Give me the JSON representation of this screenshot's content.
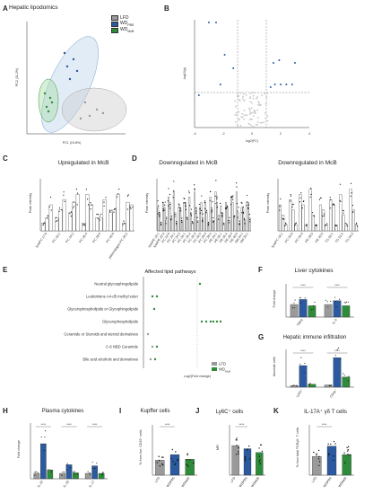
{
  "labels": {
    "A": "A",
    "B": "B",
    "C": "C",
    "D": "D",
    "E": "E",
    "F": "F",
    "G": "G",
    "H": "H",
    "I": "I",
    "J": "J",
    "K": "K"
  },
  "titles": {
    "A": "Hepatic lipodomics",
    "C": "Upregulated in McB",
    "D1": "Downregulated in McB",
    "D2": "Downregulated in McB",
    "E": "Affected lipid pathways",
    "F": "Liver cytokines",
    "G": "Hepatic immune infiltration",
    "H": "Plasma cytokines",
    "I": "Kupffer cells",
    "J": "Ly6C⁺ cells",
    "K": "IL-17A⁺ γδ T cells"
  },
  "legend": {
    "groups": [
      "LFD",
      "WD",
      "WD"
    ],
    "subscripts": [
      "",
      "PBS",
      "McB"
    ],
    "colors": [
      "#9a9a9a",
      "#2c5aa0",
      "#2e8b3a"
    ]
  },
  "axes": {
    "pca_x": "PC1 (19.8%)",
    "pca_y": "PC2 (11.2%)",
    "volcano_x": "log2(FC)",
    "volcano_y": "-log10(p)",
    "peak_intensity": "Peak intensity",
    "e_x": "Log2(Fold change)",
    "fold_change": "Fold change",
    "pct_cd45": "% from live, CD45⁺ cells",
    "mfi": "MFI",
    "pct_tcr": "% from total TCRγδ⁺ T cells",
    "absolute_cells": "Absolute cells"
  },
  "volcano_xticks": [
    "-4",
    "-2",
    "0",
    "2",
    "4"
  ],
  "c_categories": [
    "lysoPC 17:0",
    "PC 32:1",
    "PC 34:2",
    "PC 36:4",
    "PC 38:6",
    "PC 40:6",
    "plasmalogen PC 36:2"
  ],
  "d1_categories": [
    "lysoPE 18:1",
    "lysoPE 20:4",
    "PC 32:0",
    "PC 34:1",
    "PC 34:3",
    "PC 36:1",
    "PC 36:2",
    "PC 36:3",
    "PC 36:5",
    "PC 38:4",
    "PC 38:5",
    "PE 34:1",
    "PE 36:1",
    "PE 36:2",
    "PE 38:4",
    "PE 40:6",
    "SM 34:1",
    "SM 36:1"
  ],
  "d2_categories": [
    "lysoPC 18:1",
    "PC 34:0",
    "PC 36:0",
    "PE 38:5",
    "PE 40:5",
    "TG 50:1",
    "TG 52:2",
    "TG 54:3"
  ],
  "e_pathways": [
    "Neutral glycosphingolipids",
    "Leukotriene A4-d5 methyl ester",
    "Glycerophospholipids or Glycophingolipids",
    "Glycerophospholipids",
    "Ceramide or Steroids and steroid derivatives",
    "C-6 NBD Ceramide",
    "Bile acid alcohols and derivatives"
  ],
  "e_legend": [
    "LFD",
    "WD"
  ],
  "e_legend_sub": [
    "",
    "McB"
  ],
  "f_categories": [
    "TNFα",
    "IL-6"
  ],
  "g_categories": [
    "Ly6G⁺",
    "CD3e⁺"
  ],
  "h_categories": [
    "IL-22",
    "IL-1β",
    "IL-17"
  ],
  "ijk_categories": [
    "LFD",
    "WDPBS",
    "WDMcB"
  ],
  "sig": "****",
  "chart_data": [
    {
      "type": "bar",
      "title": "Liver cytokines",
      "ylabel": "Fold change",
      "categories": [
        "TNFα",
        "IL-6"
      ],
      "series": [
        {
          "name": "LFD",
          "values": [
            1.0,
            1.0
          ]
        },
        {
          "name": "WDPBS",
          "values": [
            1.4,
            1.3
          ]
        },
        {
          "name": "WDMcB",
          "values": [
            0.9,
            0.9
          ]
        }
      ],
      "ylim": [
        0,
        2.5
      ]
    },
    {
      "type": "bar",
      "title": "Hepatic immune infiltration",
      "ylabel": "Absolute cells",
      "categories": [
        "Ly6G⁺",
        "CD3e⁺"
      ],
      "series": [
        {
          "name": "LFD",
          "values": [
            0.2,
            0.3
          ]
        },
        {
          "name": "WDPBS",
          "values": [
            3.0,
            4.1
          ]
        },
        {
          "name": "WDMcB",
          "values": [
            0.4,
            1.4
          ]
        }
      ],
      "ylim": [
        0,
        5
      ]
    },
    {
      "type": "bar",
      "title": "Plasma cytokines",
      "ylabel": "Fold change",
      "categories": [
        "IL-22",
        "IL-1β",
        "IL-17"
      ],
      "series": [
        {
          "name": "LFD",
          "values": [
            1.0,
            1.0,
            1.0
          ]
        },
        {
          "name": "WDPBS",
          "values": [
            6.5,
            2.6,
            2.4
          ]
        },
        {
          "name": "WDMcB",
          "values": [
            1.6,
            1.1,
            1.0
          ]
        }
      ],
      "ylim": [
        0,
        10
      ]
    },
    {
      "type": "bar",
      "title": "Kupffer cells",
      "ylabel": "% from live, CD45⁺ cells",
      "categories": [
        "LFD",
        "WDPBS",
        "WDMcB"
      ],
      "series": [
        {
          "name": "",
          "values": [
            3.2,
            4.4,
            3.4
          ]
        }
      ],
      "ylim": [
        0,
        10
      ]
    },
    {
      "type": "bar",
      "title": "Ly6C⁺ cells",
      "ylabel": "MFI",
      "categories": [
        "LFD",
        "WDPBS",
        "WDMcB"
      ],
      "series": [
        {
          "name": "",
          "values": [
            7600,
            6800,
            5800
          ]
        }
      ],
      "ylim": [
        0,
        12000
      ]
    },
    {
      "type": "bar",
      "title": "IL-17A⁺ γδ T cells",
      "ylabel": "% from total TCRγδ⁺ T cells",
      "categories": [
        "LFD",
        "WDPBS",
        "WDMcB"
      ],
      "series": [
        {
          "name": "",
          "values": [
            20,
            31,
            22
          ]
        }
      ],
      "ylim": [
        0,
        50
      ]
    }
  ]
}
